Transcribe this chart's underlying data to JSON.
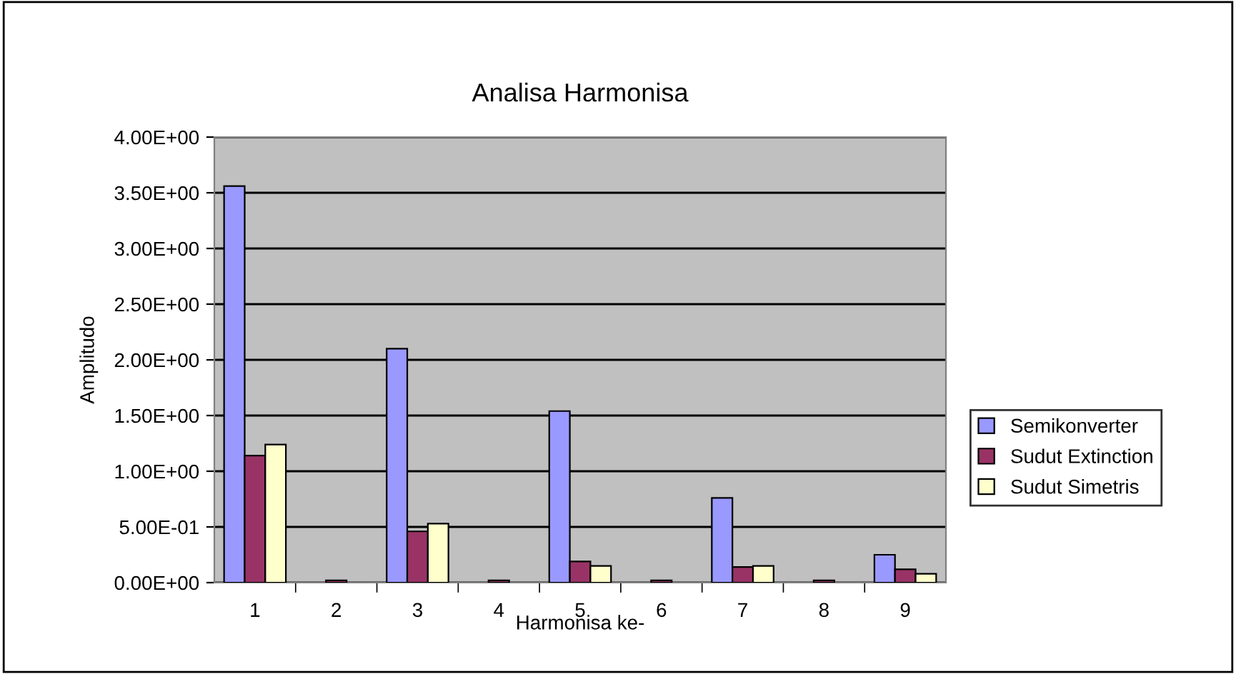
{
  "chart_data": {
    "type": "bar",
    "title": "Analisa Harmonisa",
    "xlabel": "Harmonisa ke-",
    "ylabel": "Amplitudo",
    "categories": [
      "1",
      "2",
      "3",
      "4",
      "5",
      "6",
      "7",
      "8",
      "9"
    ],
    "series": [
      {
        "name": "Semikonverter",
        "color": "#9999ff",
        "values": [
          3.56,
          null,
          2.1,
          null,
          1.54,
          null,
          0.76,
          null,
          0.25
        ]
      },
      {
        "name": "Sudut Extinction",
        "color": "#993366",
        "values": [
          1.14,
          0.02,
          0.46,
          0.02,
          0.19,
          0.02,
          0.14,
          0.02,
          0.12
        ]
      },
      {
        "name": "Sudut Simetris",
        "color": "#ffffcc",
        "values": [
          1.24,
          null,
          0.53,
          null,
          0.15,
          null,
          0.15,
          null,
          0.08
        ]
      }
    ],
    "ylim": [
      0,
      4
    ],
    "yticks": [
      {
        "value": 0,
        "label": "0.00E+00"
      },
      {
        "value": 0.5,
        "label": "5.00E-01"
      },
      {
        "value": 1,
        "label": "1.00E+00"
      },
      {
        "value": 1.5,
        "label": "1.50E+00"
      },
      {
        "value": 2,
        "label": "2.00E+00"
      },
      {
        "value": 2.5,
        "label": "2.50E+00"
      },
      {
        "value": 3,
        "label": "3.00E+00"
      },
      {
        "value": 3.5,
        "label": "3.50E+00"
      },
      {
        "value": 4,
        "label": "4.00E+00"
      }
    ],
    "grid": "y",
    "legend": "right"
  }
}
